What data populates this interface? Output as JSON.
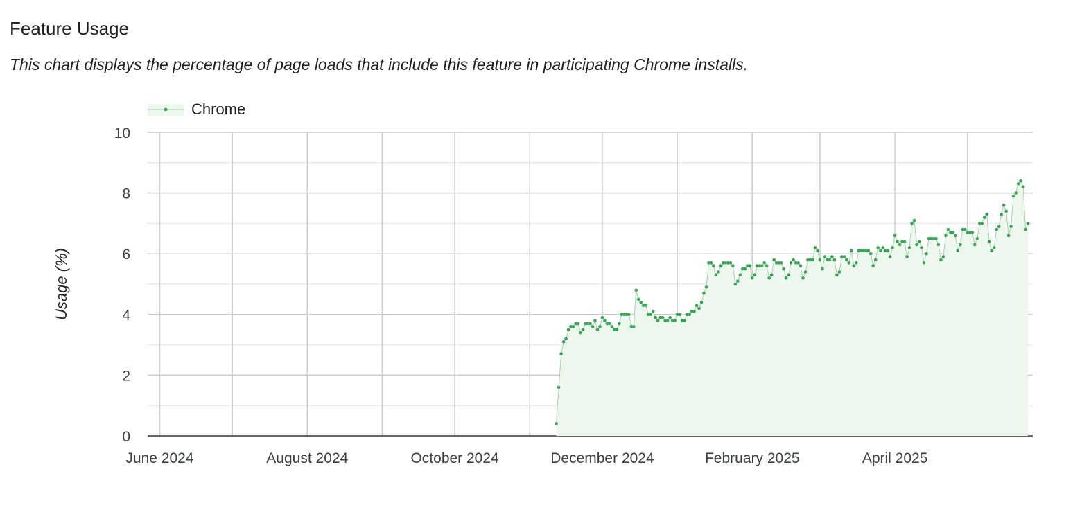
{
  "title": "Feature Usage",
  "subtitle": "This chart displays the percentage of page loads that include this feature in participating Chrome installs.",
  "chart_data": {
    "type": "area",
    "title": "",
    "xlabel": "",
    "ylabel": "Usage (%)",
    "ylim": [
      0,
      10
    ],
    "xlim": [
      "2024-05-27",
      "2025-05-28"
    ],
    "y_ticks": [
      "0",
      "2",
      "4",
      "6",
      "8",
      "10"
    ],
    "x_ticks": [
      {
        "date": "2024-06-01",
        "label": "June 2024"
      },
      {
        "date": "2024-08-01",
        "label": "August 2024"
      },
      {
        "date": "2024-10-01",
        "label": "October 2024"
      },
      {
        "date": "2024-12-01",
        "label": "December 2024"
      },
      {
        "date": "2025-02-01",
        "label": "February 2025"
      },
      {
        "date": "2025-04-01",
        "label": "April 2025"
      }
    ],
    "grid": true,
    "legend": "top-left",
    "series": [
      {
        "name": "Chrome",
        "color": "#34a853",
        "fill": "#edf7ee",
        "x": [
          "2024-11-12",
          "2024-11-13",
          "2024-11-14",
          "2024-11-15",
          "2024-11-16",
          "2024-11-17",
          "2024-11-18",
          "2024-11-19",
          "2024-11-20",
          "2024-11-21",
          "2024-11-22",
          "2024-11-23",
          "2024-11-24",
          "2024-11-25",
          "2024-11-26",
          "2024-11-27",
          "2024-11-28",
          "2024-11-29",
          "2024-11-30",
          "2024-12-01",
          "2024-12-02",
          "2024-12-03",
          "2024-12-04",
          "2024-12-05",
          "2024-12-06",
          "2024-12-07",
          "2024-12-08",
          "2024-12-09",
          "2024-12-10",
          "2024-12-11",
          "2024-12-12",
          "2024-12-13",
          "2024-12-14",
          "2024-12-15",
          "2024-12-16",
          "2024-12-17",
          "2024-12-18",
          "2024-12-19",
          "2024-12-20",
          "2024-12-21",
          "2024-12-22",
          "2024-12-23",
          "2024-12-24",
          "2024-12-25",
          "2024-12-26",
          "2024-12-27",
          "2024-12-28",
          "2024-12-29",
          "2024-12-30",
          "2024-12-31",
          "2025-01-01",
          "2025-01-02",
          "2025-01-03",
          "2025-01-04",
          "2025-01-05",
          "2025-01-06",
          "2025-01-07",
          "2025-01-08",
          "2025-01-09",
          "2025-01-10",
          "2025-01-11",
          "2025-01-12",
          "2025-01-13",
          "2025-01-14",
          "2025-01-15",
          "2025-01-16",
          "2025-01-17",
          "2025-01-18",
          "2025-01-19",
          "2025-01-20",
          "2025-01-21",
          "2025-01-22",
          "2025-01-23",
          "2025-01-24",
          "2025-01-25",
          "2025-01-26",
          "2025-01-27",
          "2025-01-28",
          "2025-01-29",
          "2025-01-30",
          "2025-01-31",
          "2025-02-01",
          "2025-02-02",
          "2025-02-03",
          "2025-02-04",
          "2025-02-05",
          "2025-02-06",
          "2025-02-07",
          "2025-02-08",
          "2025-02-09",
          "2025-02-10",
          "2025-02-11",
          "2025-02-12",
          "2025-02-13",
          "2025-02-14",
          "2025-02-15",
          "2025-02-16",
          "2025-02-17",
          "2025-02-18",
          "2025-02-19",
          "2025-02-20",
          "2025-02-21",
          "2025-02-22",
          "2025-02-23",
          "2025-02-24",
          "2025-02-25",
          "2025-02-26",
          "2025-02-27",
          "2025-02-28",
          "2025-03-01",
          "2025-03-02",
          "2025-03-03",
          "2025-03-04",
          "2025-03-05",
          "2025-03-06",
          "2025-03-07",
          "2025-03-08",
          "2025-03-09",
          "2025-03-10",
          "2025-03-11",
          "2025-03-12",
          "2025-03-13",
          "2025-03-14",
          "2025-03-15",
          "2025-03-16",
          "2025-03-17",
          "2025-03-18",
          "2025-03-19",
          "2025-03-20",
          "2025-03-21",
          "2025-03-22",
          "2025-03-23",
          "2025-03-24",
          "2025-03-25",
          "2025-03-26",
          "2025-03-27",
          "2025-03-28",
          "2025-03-29",
          "2025-03-30",
          "2025-03-31",
          "2025-04-01",
          "2025-04-02",
          "2025-04-03",
          "2025-04-04",
          "2025-04-05",
          "2025-04-06",
          "2025-04-07",
          "2025-04-08",
          "2025-04-09",
          "2025-04-10",
          "2025-04-11",
          "2025-04-12",
          "2025-04-13",
          "2025-04-14",
          "2025-04-15",
          "2025-04-16",
          "2025-04-17",
          "2025-04-18",
          "2025-04-19",
          "2025-04-20",
          "2025-04-21",
          "2025-04-22",
          "2025-04-23",
          "2025-04-24",
          "2025-04-25",
          "2025-04-26",
          "2025-04-27",
          "2025-04-28",
          "2025-04-29",
          "2025-04-30",
          "2025-05-01",
          "2025-05-02",
          "2025-05-03",
          "2025-05-04",
          "2025-05-05",
          "2025-05-06",
          "2025-05-07",
          "2025-05-08",
          "2025-05-09",
          "2025-05-10",
          "2025-05-11",
          "2025-05-12",
          "2025-05-13",
          "2025-05-14",
          "2025-05-15",
          "2025-05-16",
          "2025-05-17",
          "2025-05-18",
          "2025-05-19",
          "2025-05-20",
          "2025-05-21",
          "2025-05-22",
          "2025-05-23",
          "2025-05-24",
          "2025-05-25",
          "2025-05-26"
        ],
        "values": [
          0.4,
          1.6,
          2.7,
          3.1,
          3.2,
          3.5,
          3.6,
          3.6,
          3.7,
          3.7,
          3.4,
          3.5,
          3.7,
          3.7,
          3.7,
          3.6,
          3.8,
          3.5,
          3.6,
          3.9,
          3.8,
          3.7,
          3.7,
          3.6,
          3.5,
          3.5,
          3.7,
          4.0,
          4.0,
          4.0,
          4.0,
          3.6,
          3.6,
          4.8,
          4.5,
          4.4,
          4.3,
          4.3,
          4.0,
          4.0,
          4.1,
          3.9,
          3.8,
          3.9,
          3.9,
          3.8,
          3.8,
          3.9,
          3.8,
          3.8,
          4.0,
          4.0,
          3.8,
          3.8,
          4.0,
          4.0,
          4.1,
          4.1,
          4.3,
          4.2,
          4.4,
          4.7,
          4.9,
          5.7,
          5.7,
          5.6,
          5.3,
          5.4,
          5.6,
          5.7,
          5.7,
          5.7,
          5.7,
          5.6,
          5.0,
          5.1,
          5.3,
          5.5,
          5.5,
          5.6,
          5.6,
          5.2,
          5.3,
          5.6,
          5.6,
          5.6,
          5.7,
          5.6,
          5.2,
          5.3,
          5.8,
          5.7,
          5.7,
          5.7,
          5.5,
          5.2,
          5.3,
          5.7,
          5.8,
          5.7,
          5.7,
          5.6,
          5.2,
          5.4,
          5.8,
          5.8,
          5.8,
          6.2,
          6.1,
          5.8,
          5.5,
          5.9,
          5.8,
          5.8,
          5.9,
          5.8,
          5.3,
          5.4,
          5.9,
          5.9,
          5.8,
          5.7,
          6.1,
          5.6,
          5.7,
          6.1,
          6.1,
          6.1,
          6.1,
          6.1,
          6.0,
          5.6,
          5.8,
          6.2,
          6.1,
          6.2,
          6.1,
          6.1,
          5.9,
          6.2,
          6.6,
          6.4,
          6.3,
          6.4,
          6.4,
          5.9,
          6.2,
          7.0,
          7.1,
          6.3,
          6.4,
          6.2,
          5.7,
          6.0,
          6.5,
          6.5,
          6.5,
          6.5,
          6.3,
          5.8,
          5.9,
          6.6,
          6.8,
          6.7,
          6.7,
          6.6,
          6.1,
          6.3,
          6.8,
          6.8,
          6.7,
          6.7,
          6.7,
          6.3,
          6.5,
          7.0,
          7.0,
          7.2,
          7.3,
          6.4,
          6.1,
          6.2,
          6.8,
          6.9,
          7.3,
          7.6,
          7.4,
          6.6,
          6.9,
          7.9,
          8.0,
          8.3,
          8.4,
          8.2,
          6.8,
          7.0
        ]
      }
    ]
  }
}
